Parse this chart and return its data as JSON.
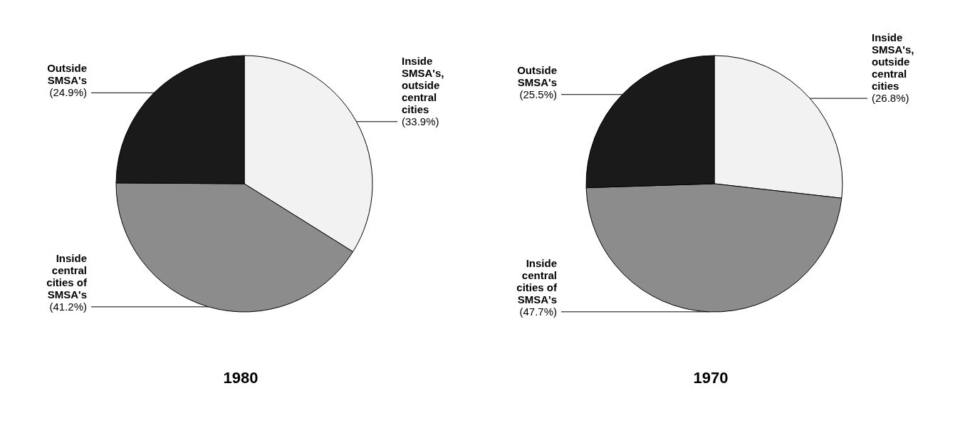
{
  "chart_data": [
    {
      "type": "pie",
      "title": "1980",
      "categories": [
        "Inside SMSA's, outside central cities",
        "Inside central cities of SMSA's",
        "Outside SMSA's"
      ],
      "values": [
        33.9,
        41.2,
        24.9
      ],
      "value_labels": [
        "(33.9%)",
        "(41.2%)",
        "(24.9%)"
      ],
      "colors": [
        "#f2f2f2",
        "#8c8c8c",
        "#1a1a1a"
      ],
      "legend": false
    },
    {
      "type": "pie",
      "title": "1970",
      "categories": [
        "Inside SMSA's, outside central cities",
        "Inside central cities of SMSA's",
        "Outside SMSA's"
      ],
      "values": [
        26.8,
        47.7,
        25.5
      ],
      "value_labels": [
        "(26.8%)",
        "(47.7%)",
        "(25.5%)"
      ],
      "colors": [
        "#f2f2f2",
        "#8c8c8c",
        "#1a1a1a"
      ],
      "legend": false
    }
  ]
}
